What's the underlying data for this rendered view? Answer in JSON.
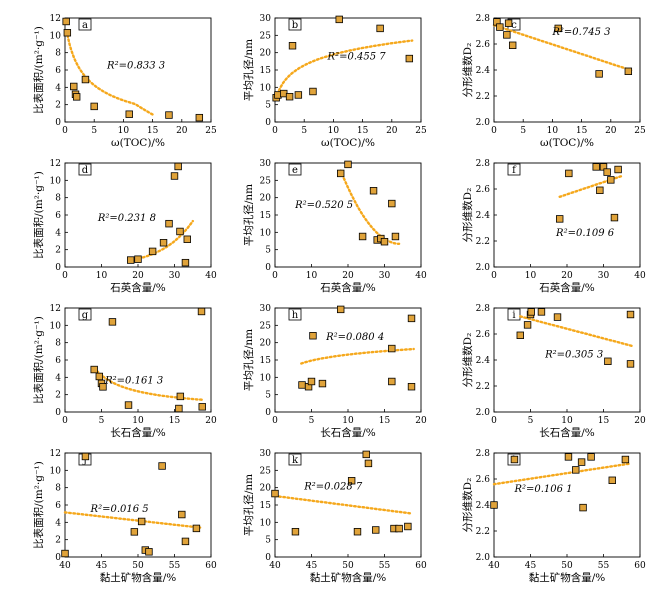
{
  "chart_data": [
    {
      "id": "a",
      "type": "scatter",
      "letter": "a",
      "xlabel": "ω(TOC)/%",
      "ylabel": "比表面积/(m²·g⁻¹)",
      "xlim": [
        0,
        25
      ],
      "ylim": [
        0,
        12
      ],
      "xticks": [
        0,
        5,
        10,
        15,
        20,
        25
      ],
      "yticks": [
        0,
        2,
        4,
        6,
        8,
        10,
        12
      ],
      "r2": "R²=0.833 3",
      "fit": "power-decay",
      "points": [
        [
          0.2,
          11.6
        ],
        [
          0.4,
          10.3
        ],
        [
          1.5,
          4.1
        ],
        [
          1.8,
          3.2
        ],
        [
          2.0,
          2.9
        ],
        [
          3.5,
          4.9
        ],
        [
          5.0,
          1.8
        ],
        [
          11.0,
          0.9
        ],
        [
          17.8,
          0.8
        ],
        [
          23.0,
          0.5
        ]
      ]
    },
    {
      "id": "b",
      "type": "scatter",
      "letter": "b",
      "xlabel": "ω(TOC)/%",
      "ylabel": "平均孔径/nm",
      "xlim": [
        0,
        25
      ],
      "ylim": [
        0,
        30
      ],
      "xticks": [
        0,
        5,
        10,
        15,
        20,
        25
      ],
      "yticks": [
        0,
        5,
        10,
        15,
        20,
        25,
        30
      ],
      "r2": "R²=0.455 7",
      "fit": "log",
      "points": [
        [
          0.2,
          7.0
        ],
        [
          0.5,
          7.8
        ],
        [
          1.5,
          8.2
        ],
        [
          2.5,
          7.3
        ],
        [
          3.0,
          22.0
        ],
        [
          4.0,
          7.8
        ],
        [
          6.5,
          8.8
        ],
        [
          11.0,
          29.6
        ],
        [
          18.0,
          27.0
        ],
        [
          23.0,
          18.3
        ]
      ]
    },
    {
      "id": "c",
      "type": "scatter",
      "letter": "c",
      "xlabel": "ω(TOC)/%",
      "ylabel": "分形维数D₂",
      "xlim": [
        0,
        25
      ],
      "ylim": [
        2.0,
        2.8
      ],
      "xticks": [
        0,
        5,
        10,
        15,
        20,
        25
      ],
      "yticks": [
        "2.0",
        "2.2",
        "2.4",
        "2.6",
        "2.8"
      ],
      "r2": "R²=0.745 3",
      "fit": "linear",
      "points": [
        [
          0.5,
          2.77
        ],
        [
          1.0,
          2.73
        ],
        [
          2.2,
          2.67
        ],
        [
          2.5,
          2.76
        ],
        [
          3.2,
          2.59
        ],
        [
          11.0,
          2.72
        ],
        [
          18.0,
          2.37
        ],
        [
          23.0,
          2.39
        ]
      ]
    },
    {
      "id": "d",
      "type": "scatter",
      "letter": "d",
      "xlabel": "石英含量/%",
      "ylabel": "比表面积/(m²·g⁻¹)",
      "xlim": [
        0,
        40
      ],
      "ylim": [
        0,
        12
      ],
      "xticks": [
        0,
        10,
        20,
        30,
        40
      ],
      "yticks": [
        0,
        2,
        4,
        6,
        8,
        10,
        12
      ],
      "r2": "R²=0.231 8",
      "fit": "exp",
      "points": [
        [
          18.0,
          0.8
        ],
        [
          20.0,
          0.9
        ],
        [
          24.0,
          1.8
        ],
        [
          27.0,
          2.8
        ],
        [
          28.5,
          5.0
        ],
        [
          30.0,
          10.5
        ],
        [
          31.0,
          11.6
        ],
        [
          31.5,
          4.1
        ],
        [
          33.0,
          0.5
        ],
        [
          33.5,
          3.2
        ]
      ]
    },
    {
      "id": "e",
      "type": "scatter",
      "letter": "e",
      "xlabel": "石英含量/%",
      "ylabel": "平均孔径/nm",
      "xlim": [
        0,
        40
      ],
      "ylim": [
        0,
        30
      ],
      "xticks": [
        0,
        10,
        20,
        30,
        40
      ],
      "yticks": [
        0,
        5,
        10,
        15,
        20,
        25,
        30
      ],
      "r2": "R²=0.520 5",
      "fit": "quad-decay",
      "points": [
        [
          18.0,
          27.0
        ],
        [
          20.0,
          29.6
        ],
        [
          24.0,
          8.8
        ],
        [
          27.0,
          22.0
        ],
        [
          28.0,
          7.8
        ],
        [
          29.0,
          8.2
        ],
        [
          30.0,
          7.3
        ],
        [
          32.0,
          18.3
        ],
        [
          33.0,
          8.8
        ]
      ]
    },
    {
      "id": "f",
      "type": "scatter",
      "letter": "f",
      "xlabel": "石英含量/%",
      "ylabel": "分形维数D₂",
      "xlim": [
        0,
        40
      ],
      "ylim": [
        2.0,
        2.8
      ],
      "xticks": [
        0,
        10,
        20,
        30,
        40
      ],
      "yticks": [
        "2.0",
        "2.2",
        "2.4",
        "2.6",
        "2.8"
      ],
      "r2": "R²=0.109 6",
      "fit": "exp-rise",
      "points": [
        [
          18.0,
          2.37
        ],
        [
          20.5,
          2.72
        ],
        [
          28.0,
          2.77
        ],
        [
          29.0,
          2.59
        ],
        [
          30.0,
          2.77
        ],
        [
          31.0,
          2.73
        ],
        [
          32.0,
          2.67
        ],
        [
          33.0,
          2.38
        ],
        [
          34.0,
          2.75
        ]
      ]
    },
    {
      "id": "g",
      "type": "scatter",
      "letter": "g",
      "xlabel": "长石含量/%",
      "ylabel": "比表面积/(m²·g⁻¹)",
      "xlim": [
        0,
        20
      ],
      "ylim": [
        0,
        12
      ],
      "xticks": [
        0,
        5,
        10,
        15,
        20
      ],
      "yticks": [
        0,
        2,
        4,
        6,
        8,
        10,
        12
      ],
      "r2": "R²=0.161 3",
      "fit": "power-decay2",
      "points": [
        [
          4.0,
          4.9
        ],
        [
          4.7,
          4.1
        ],
        [
          5.0,
          3.3
        ],
        [
          5.2,
          2.9
        ],
        [
          6.5,
          10.4
        ],
        [
          8.7,
          0.8
        ],
        [
          15.6,
          0.4
        ],
        [
          15.8,
          1.8
        ],
        [
          18.7,
          11.6
        ],
        [
          18.8,
          0.6
        ]
      ]
    },
    {
      "id": "h",
      "type": "scatter",
      "letter": "h",
      "xlabel": "长石含量/%",
      "ylabel": "平均孔径/nm",
      "xlim": [
        0,
        20
      ],
      "ylim": [
        0,
        30
      ],
      "xticks": [
        0,
        5,
        10,
        15,
        20
      ],
      "yticks": [
        0,
        5,
        10,
        15,
        20,
        25,
        30
      ],
      "r2": "R²=0.080 4",
      "fit": "log2",
      "points": [
        [
          3.7,
          7.8
        ],
        [
          4.6,
          7.3
        ],
        [
          5.0,
          8.8
        ],
        [
          5.2,
          22.0
        ],
        [
          6.5,
          8.2
        ],
        [
          9.0,
          29.6
        ],
        [
          16.0,
          18.3
        ],
        [
          16.0,
          8.8
        ],
        [
          18.7,
          27.0
        ],
        [
          18.7,
          7.3
        ]
      ]
    },
    {
      "id": "i",
      "type": "scatter",
      "letter": "i",
      "xlabel": "长石含量/%",
      "ylabel": "分形维数D₂",
      "xlim": [
        0,
        20
      ],
      "ylim": [
        2.0,
        2.8
      ],
      "xticks": [
        0,
        5,
        10,
        15,
        20
      ],
      "yticks": [
        "2.0",
        "2.2",
        "2.4",
        "2.6",
        "2.8"
      ],
      "r2": "R²=0.305 3",
      "fit": "linear2",
      "points": [
        [
          3.6,
          2.59
        ],
        [
          4.6,
          2.67
        ],
        [
          5.0,
          2.75
        ],
        [
          5.1,
          2.77
        ],
        [
          6.5,
          2.77
        ],
        [
          8.7,
          2.73
        ],
        [
          15.6,
          2.39
        ],
        [
          18.7,
          2.75
        ],
        [
          18.7,
          2.37
        ]
      ]
    },
    {
      "id": "j",
      "type": "scatter",
      "letter": "j",
      "xlabel": "黏土矿物含量/%",
      "ylabel": "比表面积/(m²·g⁻¹)",
      "xlim": [
        40,
        60
      ],
      "ylim": [
        0,
        12
      ],
      "xticks": [
        40,
        45,
        50,
        55,
        60
      ],
      "yticks": [
        0,
        2,
        4,
        6,
        8,
        10,
        12
      ],
      "r2": "R²=0.016 5",
      "fit": "linear3",
      "points": [
        [
          40.0,
          0.4
        ],
        [
          42.8,
          11.6
        ],
        [
          49.5,
          2.9
        ],
        [
          50.5,
          4.1
        ],
        [
          51.0,
          0.8
        ],
        [
          51.5,
          0.6
        ],
        [
          53.3,
          10.5
        ],
        [
          56.0,
          4.9
        ],
        [
          56.5,
          1.8
        ],
        [
          58.0,
          3.3
        ]
      ]
    },
    {
      "id": "k",
      "type": "scatter",
      "letter": "k",
      "xlabel": "黏土矿物含量/%",
      "ylabel": "平均孔径/nm",
      "xlim": [
        40,
        60
      ],
      "ylim": [
        0,
        30
      ],
      "xticks": [
        40,
        45,
        50,
        55,
        60
      ],
      "yticks": [
        0,
        5,
        10,
        15,
        20,
        25,
        30
      ],
      "r2": "R²=0.028 7",
      "fit": "linear4",
      "points": [
        [
          40.0,
          18.3
        ],
        [
          42.8,
          7.3
        ],
        [
          50.5,
          22.0
        ],
        [
          51.3,
          7.3
        ],
        [
          52.5,
          29.6
        ],
        [
          52.8,
          27.0
        ],
        [
          53.8,
          7.8
        ],
        [
          56.3,
          8.2
        ],
        [
          57.0,
          8.2
        ],
        [
          58.2,
          8.8
        ]
      ]
    },
    {
      "id": "l",
      "type": "scatter",
      "letter": "l",
      "xlabel": "黏土矿物含量/%",
      "ylabel": "分形维数D₂",
      "xlim": [
        40,
        60
      ],
      "ylim": [
        2.0,
        2.8
      ],
      "xticks": [
        40,
        45,
        50,
        55,
        60
      ],
      "yticks": [
        "2.0",
        "2.2",
        "2.4",
        "2.6",
        "2.8"
      ],
      "r2": "R²=0.106 1",
      "fit": "linear5",
      "points": [
        [
          40.0,
          2.4
        ],
        [
          42.8,
          2.75
        ],
        [
          50.2,
          2.77
        ],
        [
          51.2,
          2.67
        ],
        [
          52.0,
          2.73
        ],
        [
          52.2,
          2.38
        ],
        [
          53.3,
          2.77
        ],
        [
          56.2,
          2.59
        ],
        [
          58.0,
          2.75
        ]
      ]
    }
  ]
}
